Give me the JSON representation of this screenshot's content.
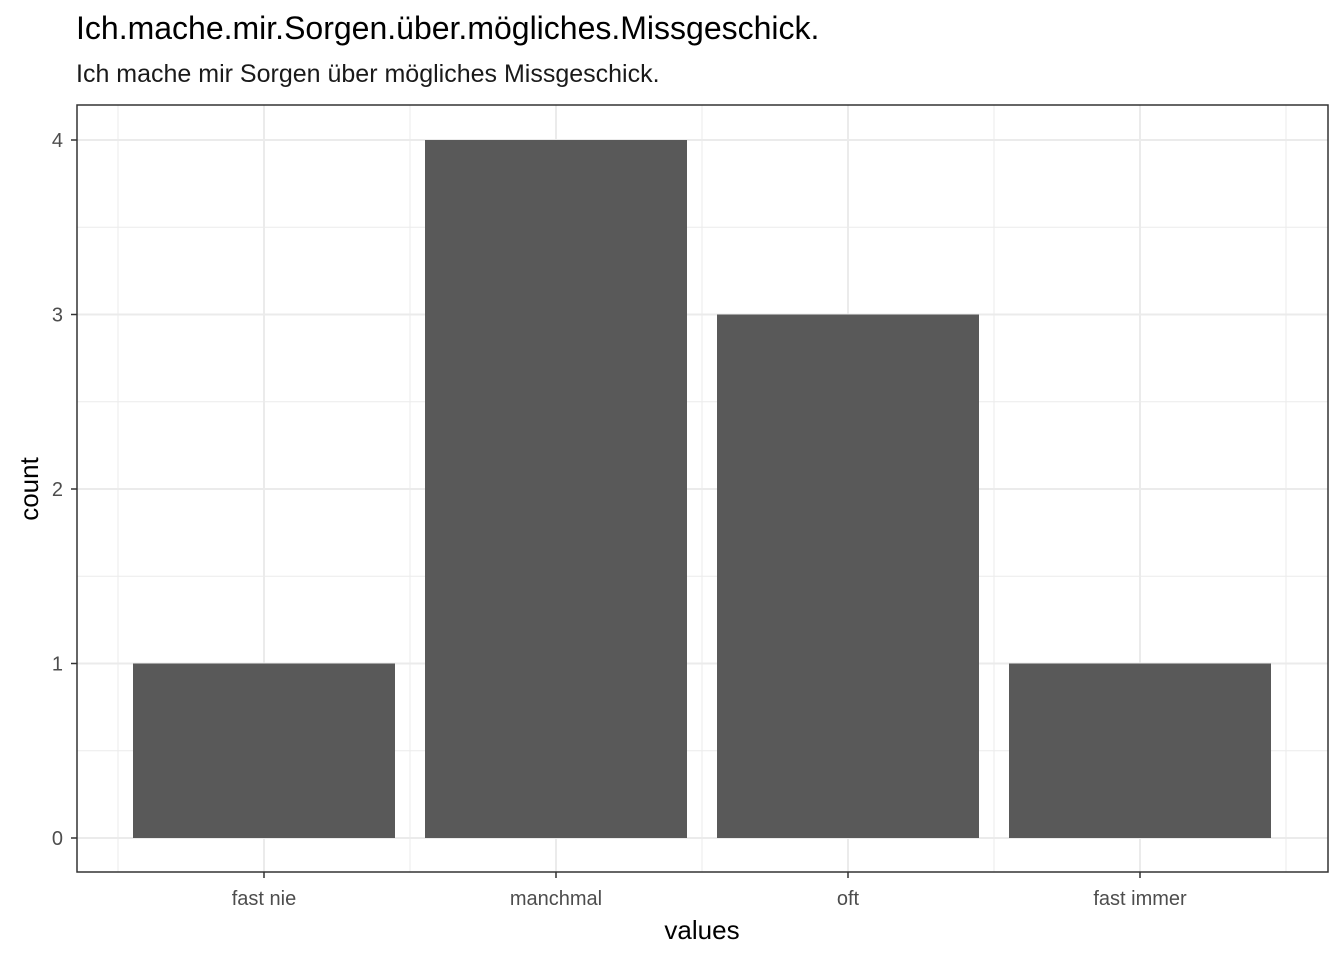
{
  "chart_data": {
    "type": "bar",
    "title": "Ich.mache.mir.Sorgen.über.mögliches.Missgeschick.",
    "subtitle": "Ich mache mir Sorgen über mögliches Missgeschick.",
    "xlabel": "values",
    "ylabel": "count",
    "categories": [
      "fast nie",
      "manchmal",
      "oft",
      "fast immer"
    ],
    "values": [
      1,
      4,
      3,
      1
    ],
    "ylim": [
      0,
      4
    ],
    "yticks": [
      "0",
      "1",
      "2",
      "3",
      "4"
    ],
    "grid": true,
    "bar_color": "#595959",
    "grid_color": "#ebebeb",
    "panel_border_color": "#333333"
  }
}
